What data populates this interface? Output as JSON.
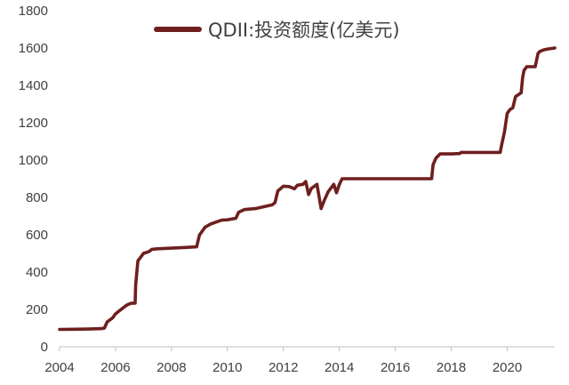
{
  "chart_data": {
    "type": "line",
    "title": "",
    "xlabel": "",
    "ylabel": "",
    "xlim": [
      2004,
      2021.7
    ],
    "ylim": [
      0,
      1800
    ],
    "x_ticks": [
      2004,
      2006,
      2008,
      2010,
      2012,
      2014,
      2016,
      2018,
      2020
    ],
    "y_ticks": [
      0,
      200,
      400,
      600,
      800,
      1000,
      1200,
      1400,
      1600,
      1800
    ],
    "grid": false,
    "legend_position": "top-center",
    "line_color": "#6e1f1f",
    "series": [
      {
        "name": "QDII:投资额度(亿美元)",
        "x": [
          2004.0,
          2004.5,
          2005.0,
          2005.5,
          2005.6,
          2005.7,
          2005.9,
          2006.0,
          2006.2,
          2006.4,
          2006.55,
          2006.7,
          2006.72,
          2006.76,
          2006.8,
          2006.9,
          2007.0,
          2007.2,
          2007.3,
          2007.5,
          2008.0,
          2008.5,
          2008.9,
          2009.0,
          2009.2,
          2009.4,
          2009.6,
          2009.8,
          2010.0,
          2010.3,
          2010.4,
          2010.6,
          2011.0,
          2011.3,
          2011.6,
          2011.7,
          2011.8,
          2012.0,
          2012.2,
          2012.4,
          2012.5,
          2012.7,
          2012.8,
          2012.9,
          2013.0,
          2013.2,
          2013.35,
          2013.45,
          2013.6,
          2013.8,
          2013.9,
          2014.0,
          2014.1,
          2014.2,
          2014.3,
          2015.0,
          2016.0,
          2017.0,
          2017.3,
          2017.35,
          2017.45,
          2017.6,
          2018.0,
          2018.3,
          2018.35,
          2019.0,
          2019.75,
          2019.8,
          2019.9,
          2020.0,
          2020.1,
          2020.2,
          2020.3,
          2020.5,
          2020.55,
          2020.6,
          2020.7,
          2020.8,
          2020.9,
          2021.0,
          2021.1,
          2021.15,
          2021.3,
          2021.45,
          2021.7
        ],
        "values": [
          93,
          94,
          95,
          97,
          100,
          133,
          155,
          176,
          200,
          223,
          233,
          234,
          330,
          400,
          460,
          480,
          500,
          510,
          522,
          525,
          528,
          532,
          535,
          598,
          640,
          657,
          668,
          678,
          680,
          688,
          720,
          735,
          740,
          750,
          760,
          772,
          835,
          860,
          858,
          846,
          865,
          870,
          885,
          815,
          848,
          870,
          740,
          780,
          830,
          870,
          825,
          870,
          900,
          900,
          900,
          900,
          900,
          900,
          900,
          975,
          1010,
          1033,
          1033,
          1035,
          1041,
          1041,
          1041,
          1080,
          1150,
          1250,
          1270,
          1280,
          1340,
          1360,
          1440,
          1480,
          1500,
          1500,
          1500,
          1500,
          1570,
          1580,
          1590,
          1595,
          1600
        ]
      }
    ]
  }
}
